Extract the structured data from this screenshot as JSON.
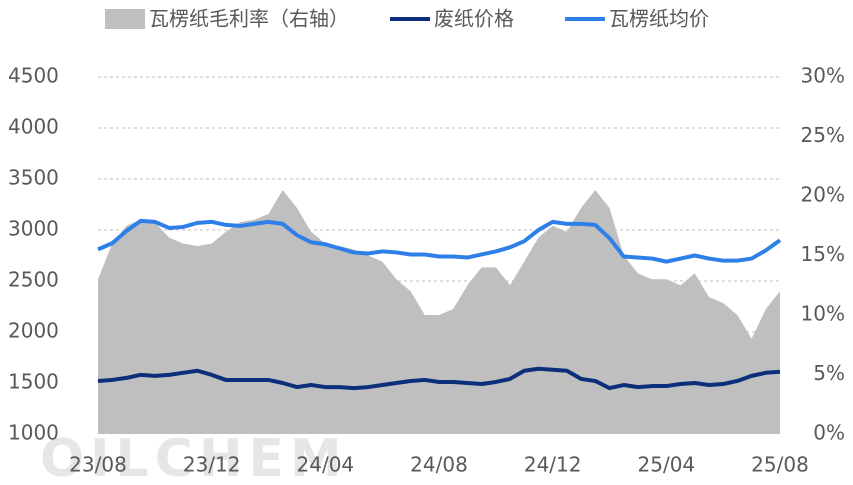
{
  "chart_data": {
    "type": "line",
    "watermark": "OILCHEM",
    "x": [
      0,
      0.5,
      1,
      1.5,
      2,
      2.5,
      3,
      3.5,
      4,
      4.5,
      5,
      5.5,
      6,
      6.5,
      7,
      7.5,
      8,
      8.5,
      9,
      9.5,
      10,
      10.5,
      11,
      11.5,
      12,
      12.5,
      13,
      13.5,
      14,
      14.5,
      15,
      15.5,
      16,
      16.5,
      17,
      17.5,
      18,
      18.5,
      19,
      19.5,
      20,
      20.5,
      21,
      21.5,
      22,
      22.5,
      23,
      23.5,
      24
    ],
    "xlim": [
      0,
      24
    ],
    "xticks": [
      {
        "value": 0,
        "label": "23/08"
      },
      {
        "value": 4,
        "label": "23/12"
      },
      {
        "value": 8,
        "label": "24/04"
      },
      {
        "value": 12,
        "label": "24/08"
      },
      {
        "value": 16,
        "label": "24/12"
      },
      {
        "value": 20,
        "label": "25/04"
      },
      {
        "value": 24,
        "label": "25/08"
      }
    ],
    "ylim": [
      1000,
      4500
    ],
    "yticks": [
      1000,
      1500,
      2000,
      2500,
      3000,
      3500,
      4000,
      4500
    ],
    "y2lim": [
      0,
      30
    ],
    "y2ticks": [
      {
        "value": 0,
        "label": "0%"
      },
      {
        "value": 5,
        "label": "5%"
      },
      {
        "value": 10,
        "label": "10%"
      },
      {
        "value": 15,
        "label": "15%"
      },
      {
        "value": 20,
        "label": "20%"
      },
      {
        "value": 25,
        "label": "25%"
      },
      {
        "value": 30,
        "label": "30%"
      }
    ],
    "grid": true,
    "legend": "top",
    "series": [
      {
        "name": "瓦楞纸毛利率（右轴）",
        "kind": "area",
        "axis": "y2",
        "color": "#bfbfbf",
        "values": [
          13,
          16,
          17.5,
          18,
          17.8,
          16.5,
          16,
          15.8,
          16,
          17,
          17.8,
          18,
          18.5,
          20.5,
          19,
          17,
          16,
          15.8,
          15.5,
          15,
          14.5,
          13,
          12,
          10,
          10,
          10.5,
          12.5,
          14,
          14,
          12.5,
          14.5,
          16.5,
          17.5,
          17,
          19,
          20.5,
          19,
          15,
          13.5,
          13,
          13,
          12.5,
          13.5,
          11.5,
          11,
          10,
          8,
          10.5,
          12
        ]
      },
      {
        "name": "废纸价格",
        "color": "#0b2f7a",
        "values": [
          1520,
          1530,
          1550,
          1580,
          1570,
          1580,
          1600,
          1620,
          1580,
          1530,
          1530,
          1530,
          1530,
          1500,
          1460,
          1480,
          1460,
          1460,
          1450,
          1460,
          1480,
          1500,
          1520,
          1530,
          1510,
          1510,
          1500,
          1490,
          1510,
          1540,
          1620,
          1640,
          1630,
          1620,
          1540,
          1520,
          1450,
          1480,
          1460,
          1470,
          1470,
          1490,
          1500,
          1480,
          1490,
          1520,
          1570,
          1600,
          1610
        ]
      },
      {
        "name": "瓦楞纸均价",
        "color": "#2f7fe8",
        "values": [
          2810,
          2870,
          2990,
          3090,
          3080,
          3020,
          3030,
          3070,
          3080,
          3050,
          3040,
          3060,
          3080,
          3060,
          2950,
          2880,
          2860,
          2820,
          2780,
          2770,
          2790,
          2780,
          2760,
          2760,
          2740,
          2740,
          2730,
          2760,
          2790,
          2830,
          2890,
          3000,
          3080,
          3060,
          3060,
          3050,
          2920,
          2740,
          2730,
          2720,
          2690,
          2720,
          2750,
          2720,
          2700,
          2700,
          2720,
          2800,
          2900
        ]
      }
    ]
  }
}
